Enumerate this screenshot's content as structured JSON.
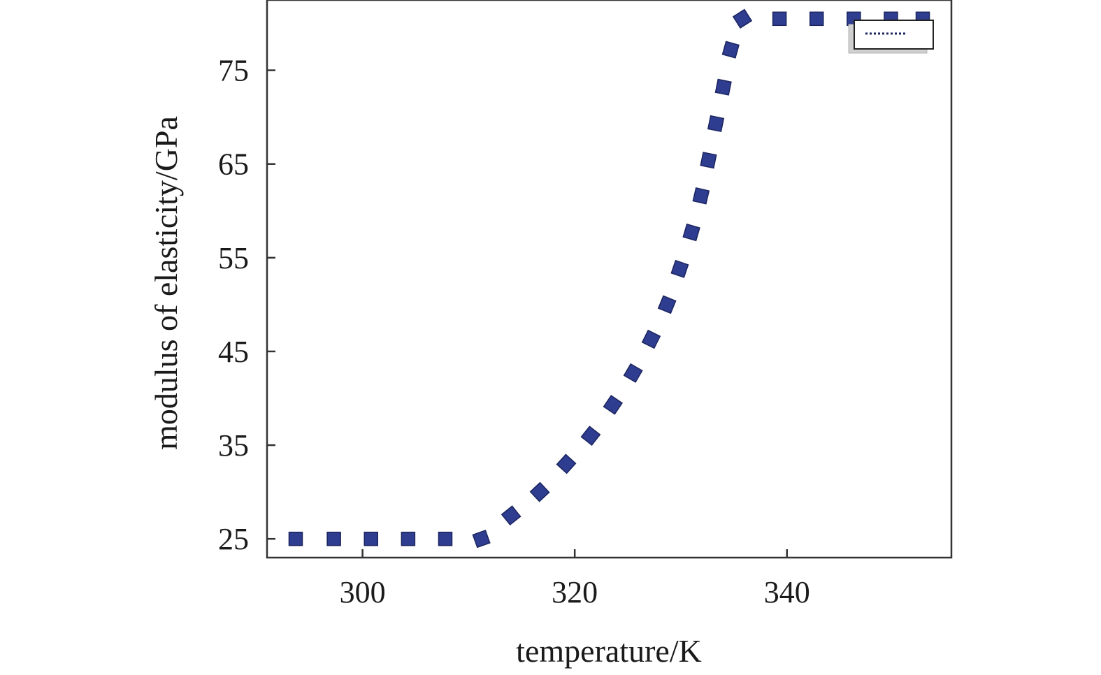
{
  "chart_data": {
    "type": "scatter",
    "title": "",
    "xlabel": "temperature/K",
    "ylabel": "modulus of elasticity/GPa",
    "xlim": [
      291,
      355.5
    ],
    "ylim": [
      23,
      82.5
    ],
    "xticks": [
      300,
      320,
      340
    ],
    "yticks": [
      25,
      35,
      45,
      55,
      65,
      75
    ],
    "grid": false,
    "legend": {
      "placement": "top-right",
      "entries": [
        ""
      ]
    },
    "series": [
      {
        "marker": "square",
        "color": "#2e3d8f",
        "x": [
          293.7,
          297.3,
          300.8,
          304.3,
          307.8,
          311.2,
          314.0,
          316.7,
          319.2,
          321.5,
          323.6,
          325.5,
          327.2,
          328.7,
          329.9,
          331.0,
          331.9,
          332.6,
          333.3,
          334.0,
          334.7,
          335.8,
          339.3,
          342.8,
          346.3,
          349.8,
          352.8
        ],
        "y": [
          25,
          25,
          25,
          25,
          25,
          25,
          27.5,
          30,
          33,
          36,
          39.3,
          42.7,
          46.3,
          50,
          53.8,
          57.7,
          61.6,
          65.4,
          69.3,
          73.2,
          77.2,
          80.5,
          80.5,
          80.5,
          80.5,
          80.5,
          80.5
        ]
      }
    ]
  }
}
